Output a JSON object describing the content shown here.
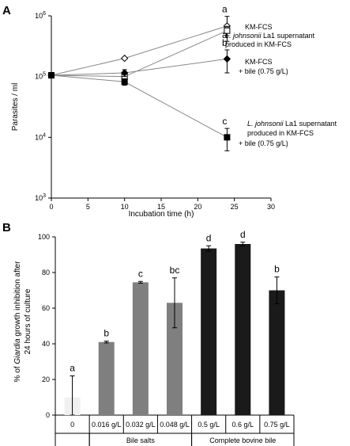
{
  "chart_data": [
    {
      "panel": "A",
      "type": "line",
      "xlabel": "Incubation time  (h)",
      "ylabel": "Parasites / ml",
      "xlim": [
        0,
        30
      ],
      "ylim": [
        1000,
        1000000
      ],
      "yscale": "log",
      "xticks": [
        "0",
        "5",
        "10",
        "15",
        "20",
        "25",
        "30"
      ],
      "yticks": [
        {
          "base": "10",
          "exp": "3",
          "value": 1000
        },
        {
          "base": "10",
          "exp": "4",
          "value": 10000
        },
        {
          "base": "10",
          "exp": "5",
          "value": 100000
        },
        {
          "base": "10",
          "exp": "6",
          "value": 1000000
        }
      ],
      "series": [
        {
          "marker": "open-diamond",
          "x": [
            0,
            10,
            24
          ],
          "y": [
            105000,
            200000,
            680000
          ],
          "err": [
            0,
            0,
            300000
          ],
          "letter": "a"
        },
        {
          "marker": "open-square",
          "x": [
            0,
            10,
            24
          ],
          "y": [
            105000,
            100000,
            570000
          ],
          "err": [
            0,
            0,
            100000
          ],
          "letter": ""
        },
        {
          "marker": "filled-diamond",
          "x": [
            0,
            10,
            24
          ],
          "y": [
            105000,
            115000,
            195000
          ],
          "err": [
            0,
            15000,
            80000
          ],
          "letter": "b"
        },
        {
          "marker": "filled-square",
          "x": [
            0,
            10,
            24
          ],
          "y": [
            105000,
            82000,
            10000
          ],
          "err": [
            0,
            10000,
            4000
          ],
          "letter": "c"
        }
      ],
      "extra_letters": [
        {
          "x": 24,
          "y": 430000,
          "text": "a"
        }
      ],
      "labels": {
        "kmfcs": "KM-FCS",
        "sup_italic": "L. johnsonii",
        "sup_rest": " La1 supernatant",
        "produced": "produced in KM-FCS",
        "kmfcs_bile_1": "KM-FCS",
        "kmfcs_bile_2": "+ bile (0.75 g/L)",
        "sup_bile_italic": "L. johnsonii",
        "sup_bile_rest": " La1 supernatant",
        "sup_bile_produced": "produced in KM-FCS",
        "sup_bile_bile": "+ bile (0.75 g/L)"
      },
      "colors": {
        "line": "#888888",
        "marker": "#000000"
      }
    },
    {
      "panel": "B",
      "type": "bar",
      "ylabel_prefix": "% of ",
      "ylabel_italic": "Giardia",
      "ylabel_suffix": " growth inhibition after",
      "ylabel_line2": "24 hours of culture",
      "ylim": [
        0,
        100
      ],
      "yticks": [
        "0",
        "20",
        "40",
        "60",
        "80",
        "100"
      ],
      "categories": [
        "0",
        "0.016 g/L",
        "0.032 g/L",
        "0.048 g/L",
        "0.5 g/L",
        "0.6 g/L",
        "0.75 g/L"
      ],
      "values": [
        10,
        41,
        74.5,
        63,
        93.5,
        96,
        70
      ],
      "errors": [
        12,
        0.5,
        0.5,
        14,
        1.5,
        1,
        7.5
      ],
      "letters": [
        "a",
        "b",
        "c",
        "bc",
        "d",
        "d",
        "b"
      ],
      "bar_colors": [
        "#f0f0f0",
        "#7f7f7f",
        "#7f7f7f",
        "#7f7f7f",
        "#1a1a1a",
        "#1a1a1a",
        "#1a1a1a"
      ],
      "groups": [
        {
          "label": "",
          "from": 0,
          "to": 0
        },
        {
          "label": "Bile salts",
          "from": 1,
          "to": 3
        },
        {
          "label": "Complete bovine bile",
          "from": 4,
          "to": 6
        }
      ]
    }
  ]
}
